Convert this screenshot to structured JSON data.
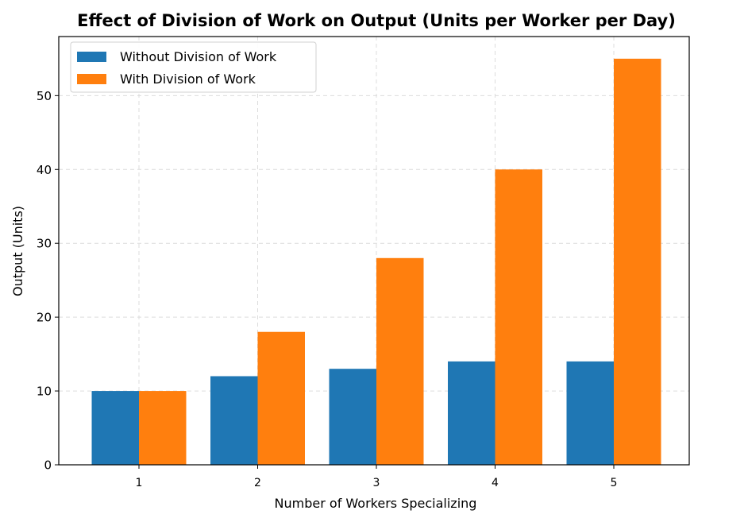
{
  "chart_data": {
    "type": "bar",
    "title": "Effect of Division of Work on Output (Units per Worker per Day)",
    "xlabel": "Number of Workers Specializing",
    "ylabel": "Output (Units)",
    "categories": [
      "1",
      "2",
      "3",
      "4",
      "5"
    ],
    "series": [
      {
        "name": "Without Division of Work",
        "color": "#1f77b4",
        "values": [
          10,
          12,
          13,
          14,
          14
        ]
      },
      {
        "name": "With Division of Work",
        "color": "#ff7f0e",
        "values": [
          10,
          18,
          28,
          40,
          55
        ]
      }
    ],
    "ylim": [
      0,
      58
    ],
    "yticks": [
      0,
      10,
      20,
      30,
      40,
      50
    ],
    "grid": true,
    "legend_position": "top-left"
  }
}
